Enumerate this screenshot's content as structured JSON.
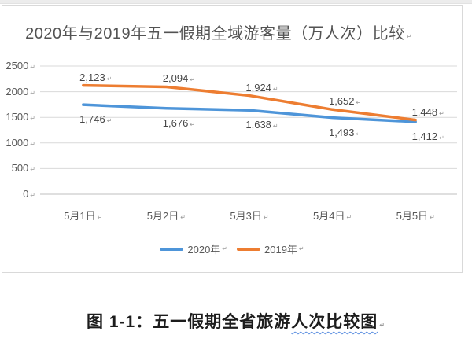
{
  "marks": {
    "paragraph": "↵"
  },
  "chart_data": {
    "type": "line",
    "title": "2020年与2019年五一假期全域游客量（万人次）比较",
    "categories": [
      "5月1日",
      "5月2日",
      "5月3日",
      "5月4日",
      "5月5日"
    ],
    "series": [
      {
        "name": "2020年",
        "color": "#4E95D9",
        "values": [
          1746,
          1676,
          1638,
          1493,
          1412
        ],
        "label_position": "below"
      },
      {
        "name": "2019年",
        "color": "#ED7D31",
        "values": [
          2123,
          2094,
          1924,
          1652,
          1448
        ],
        "label_position": "above"
      }
    ],
    "ylim": [
      0,
      2500
    ],
    "yticks": [
      0,
      500,
      1000,
      1500,
      2000,
      2500
    ],
    "grid": true,
    "gridline_color": "#d9d9d9",
    "axis_line_color": "#bfbfbf",
    "legend_position": "bottom",
    "data_labels": true,
    "number_format": "thousands-comma"
  },
  "caption": {
    "prefix": "图 1-1：五一假期全省旅游",
    "underlined": "人次比较图"
  }
}
